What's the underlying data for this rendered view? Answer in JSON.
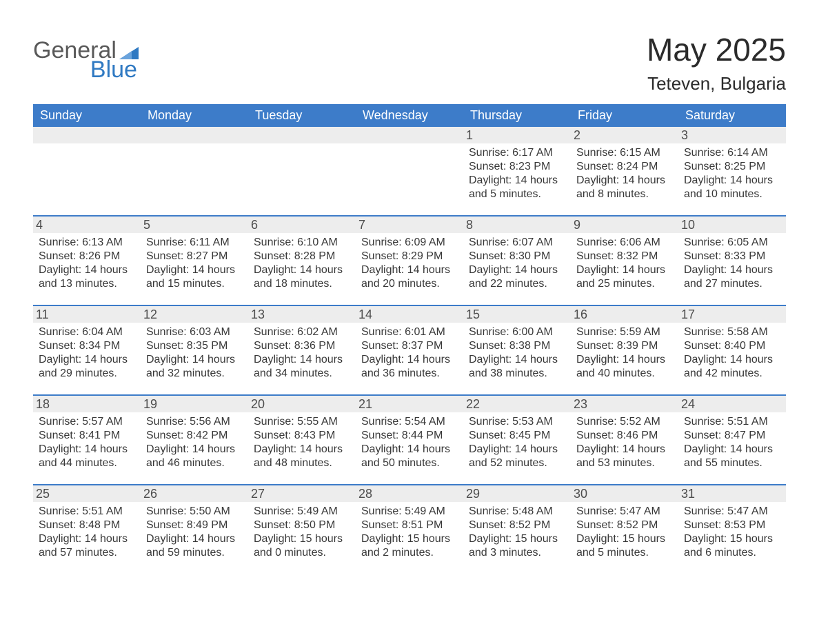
{
  "logo": {
    "text1": "General",
    "text2": "Blue"
  },
  "title": "May 2025",
  "location": "Teteven, Bulgaria",
  "weekdays": [
    "Sunday",
    "Monday",
    "Tuesday",
    "Wednesday",
    "Thursday",
    "Friday",
    "Saturday"
  ],
  "colors": {
    "header_blue": "#3d7cc9",
    "daynum_bg": "#ededed",
    "text": "#383838",
    "logo_gray": "#595959",
    "logo_blue": "#2f79c2",
    "background": "#ffffff"
  },
  "weeks": [
    [
      null,
      null,
      null,
      null,
      {
        "n": "1",
        "sunrise": "6:17 AM",
        "sunset": "8:23 PM",
        "daylight": "14 hours and 5 minutes."
      },
      {
        "n": "2",
        "sunrise": "6:15 AM",
        "sunset": "8:24 PM",
        "daylight": "14 hours and 8 minutes."
      },
      {
        "n": "3",
        "sunrise": "6:14 AM",
        "sunset": "8:25 PM",
        "daylight": "14 hours and 10 minutes."
      }
    ],
    [
      {
        "n": "4",
        "sunrise": "6:13 AM",
        "sunset": "8:26 PM",
        "daylight": "14 hours and 13 minutes."
      },
      {
        "n": "5",
        "sunrise": "6:11 AM",
        "sunset": "8:27 PM",
        "daylight": "14 hours and 15 minutes."
      },
      {
        "n": "6",
        "sunrise": "6:10 AM",
        "sunset": "8:28 PM",
        "daylight": "14 hours and 18 minutes."
      },
      {
        "n": "7",
        "sunrise": "6:09 AM",
        "sunset": "8:29 PM",
        "daylight": "14 hours and 20 minutes."
      },
      {
        "n": "8",
        "sunrise": "6:07 AM",
        "sunset": "8:30 PM",
        "daylight": "14 hours and 22 minutes."
      },
      {
        "n": "9",
        "sunrise": "6:06 AM",
        "sunset": "8:32 PM",
        "daylight": "14 hours and 25 minutes."
      },
      {
        "n": "10",
        "sunrise": "6:05 AM",
        "sunset": "8:33 PM",
        "daylight": "14 hours and 27 minutes."
      }
    ],
    [
      {
        "n": "11",
        "sunrise": "6:04 AM",
        "sunset": "8:34 PM",
        "daylight": "14 hours and 29 minutes."
      },
      {
        "n": "12",
        "sunrise": "6:03 AM",
        "sunset": "8:35 PM",
        "daylight": "14 hours and 32 minutes."
      },
      {
        "n": "13",
        "sunrise": "6:02 AM",
        "sunset": "8:36 PM",
        "daylight": "14 hours and 34 minutes."
      },
      {
        "n": "14",
        "sunrise": "6:01 AM",
        "sunset": "8:37 PM",
        "daylight": "14 hours and 36 minutes."
      },
      {
        "n": "15",
        "sunrise": "6:00 AM",
        "sunset": "8:38 PM",
        "daylight": "14 hours and 38 minutes."
      },
      {
        "n": "16",
        "sunrise": "5:59 AM",
        "sunset": "8:39 PM",
        "daylight": "14 hours and 40 minutes."
      },
      {
        "n": "17",
        "sunrise": "5:58 AM",
        "sunset": "8:40 PM",
        "daylight": "14 hours and 42 minutes."
      }
    ],
    [
      {
        "n": "18",
        "sunrise": "5:57 AM",
        "sunset": "8:41 PM",
        "daylight": "14 hours and 44 minutes."
      },
      {
        "n": "19",
        "sunrise": "5:56 AM",
        "sunset": "8:42 PM",
        "daylight": "14 hours and 46 minutes."
      },
      {
        "n": "20",
        "sunrise": "5:55 AM",
        "sunset": "8:43 PM",
        "daylight": "14 hours and 48 minutes."
      },
      {
        "n": "21",
        "sunrise": "5:54 AM",
        "sunset": "8:44 PM",
        "daylight": "14 hours and 50 minutes."
      },
      {
        "n": "22",
        "sunrise": "5:53 AM",
        "sunset": "8:45 PM",
        "daylight": "14 hours and 52 minutes."
      },
      {
        "n": "23",
        "sunrise": "5:52 AM",
        "sunset": "8:46 PM",
        "daylight": "14 hours and 53 minutes."
      },
      {
        "n": "24",
        "sunrise": "5:51 AM",
        "sunset": "8:47 PM",
        "daylight": "14 hours and 55 minutes."
      }
    ],
    [
      {
        "n": "25",
        "sunrise": "5:51 AM",
        "sunset": "8:48 PM",
        "daylight": "14 hours and 57 minutes."
      },
      {
        "n": "26",
        "sunrise": "5:50 AM",
        "sunset": "8:49 PM",
        "daylight": "14 hours and 59 minutes."
      },
      {
        "n": "27",
        "sunrise": "5:49 AM",
        "sunset": "8:50 PM",
        "daylight": "15 hours and 0 minutes."
      },
      {
        "n": "28",
        "sunrise": "5:49 AM",
        "sunset": "8:51 PM",
        "daylight": "15 hours and 2 minutes."
      },
      {
        "n": "29",
        "sunrise": "5:48 AM",
        "sunset": "8:52 PM",
        "daylight": "15 hours and 3 minutes."
      },
      {
        "n": "30",
        "sunrise": "5:47 AM",
        "sunset": "8:52 PM",
        "daylight": "15 hours and 5 minutes."
      },
      {
        "n": "31",
        "sunrise": "5:47 AM",
        "sunset": "8:53 PM",
        "daylight": "15 hours and 6 minutes."
      }
    ]
  ],
  "labels": {
    "sunrise": "Sunrise:",
    "sunset": "Sunset:",
    "daylight": "Daylight:"
  }
}
